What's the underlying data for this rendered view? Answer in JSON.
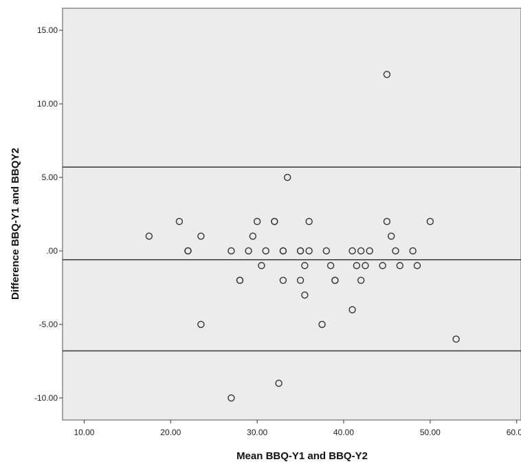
{
  "chart_data": {
    "type": "scatter",
    "xlabel": "Mean BBQ-Y1 and BBQ-Y2",
    "ylabel": "Difference BBQ-Y1 and BBQY2",
    "xlim": [
      7.5,
      60.5
    ],
    "ylim": [
      -11.5,
      16.5
    ],
    "x_ticks": [
      10,
      20,
      30,
      40,
      50,
      60
    ],
    "x_tick_labels": [
      "10.00",
      "20.00",
      "30.00",
      "40.00",
      "50.00",
      "60.00"
    ],
    "y_ticks": [
      15,
      10,
      5,
      0,
      -5,
      -10
    ],
    "y_tick_labels": [
      "15.00",
      "10.00",
      "5.00",
      ".00",
      "-5.00",
      "-10.00"
    ],
    "grid": false,
    "legend": "none",
    "colors": {
      "plot_background": "#ececec",
      "point_stroke": "#333333",
      "reference_line": "#444444"
    },
    "reference_lines": [
      {
        "y": 5.7
      },
      {
        "y": -0.6
      },
      {
        "y": -6.8
      }
    ],
    "points": [
      {
        "x": 17.5,
        "y": 1
      },
      {
        "x": 21,
        "y": 2
      },
      {
        "x": 22,
        "y": 0
      },
      {
        "x": 22,
        "y": 0
      },
      {
        "x": 23.5,
        "y": 1
      },
      {
        "x": 23.5,
        "y": -5
      },
      {
        "x": 27,
        "y": 0
      },
      {
        "x": 27,
        "y": -10
      },
      {
        "x": 28,
        "y": -2
      },
      {
        "x": 28,
        "y": -2
      },
      {
        "x": 29,
        "y": 0
      },
      {
        "x": 29.5,
        "y": 1
      },
      {
        "x": 30,
        "y": 2
      },
      {
        "x": 30.5,
        "y": -1
      },
      {
        "x": 31,
        "y": 0
      },
      {
        "x": 32,
        "y": 2
      },
      {
        "x": 32,
        "y": 2
      },
      {
        "x": 32.5,
        "y": -9
      },
      {
        "x": 33,
        "y": 0
      },
      {
        "x": 33,
        "y": 0
      },
      {
        "x": 33,
        "y": -2
      },
      {
        "x": 33.5,
        "y": 5
      },
      {
        "x": 35,
        "y": 0
      },
      {
        "x": 35,
        "y": 0
      },
      {
        "x": 35,
        "y": -2
      },
      {
        "x": 35.5,
        "y": -1
      },
      {
        "x": 35.5,
        "y": -3
      },
      {
        "x": 36,
        "y": 2
      },
      {
        "x": 36,
        "y": 0
      },
      {
        "x": 37.5,
        "y": -5
      },
      {
        "x": 38,
        "y": 0
      },
      {
        "x": 38.5,
        "y": -1
      },
      {
        "x": 39,
        "y": -2
      },
      {
        "x": 39,
        "y": -2
      },
      {
        "x": 41,
        "y": 0
      },
      {
        "x": 41,
        "y": -4
      },
      {
        "x": 41.5,
        "y": -1
      },
      {
        "x": 42,
        "y": 0
      },
      {
        "x": 42,
        "y": -2
      },
      {
        "x": 42.5,
        "y": -1
      },
      {
        "x": 43,
        "y": 0
      },
      {
        "x": 44.5,
        "y": -1
      },
      {
        "x": 45,
        "y": 12
      },
      {
        "x": 45,
        "y": 2
      },
      {
        "x": 45.5,
        "y": 1
      },
      {
        "x": 46,
        "y": 0
      },
      {
        "x": 46.5,
        "y": -1
      },
      {
        "x": 48,
        "y": 0
      },
      {
        "x": 48.5,
        "y": -1
      },
      {
        "x": 50,
        "y": 2
      },
      {
        "x": 53,
        "y": -6
      }
    ]
  }
}
